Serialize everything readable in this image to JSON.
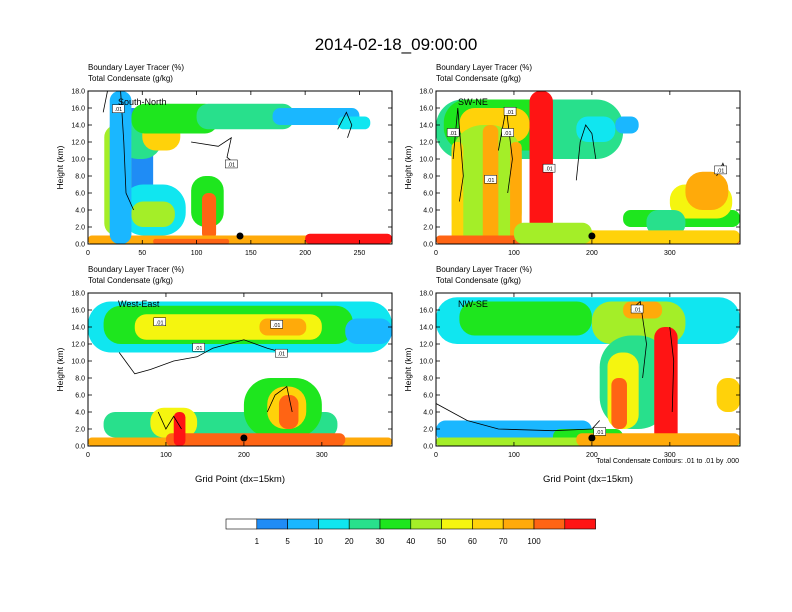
{
  "title": "2014-02-18_09:00:00",
  "palette": [
    "#ffffff",
    "#1f8cf5",
    "#1ab7ff",
    "#10e6f0",
    "#28e08c",
    "#1ee61e",
    "#a4ee28",
    "#f5f50f",
    "#ffd20a",
    "#ffaa0a",
    "#ff6414",
    "#ff1414"
  ],
  "colorbar": {
    "labels": [
      "1",
      "5",
      "10",
      "20",
      "30",
      "40",
      "50",
      "60",
      "70",
      "100"
    ]
  },
  "footnote": "Total Condensate Contours: .01 to .01 by .000",
  "colors": {
    "contour": "#000000",
    "frame": "#000000",
    "marker": "#000000"
  },
  "chart_data": [
    {
      "type": "heatmap",
      "panel": "top-left",
      "left_title_1": "Boundary Layer Tracer   (%)",
      "left_title_2": "Total Condensate   (g/kg)",
      "label": "South-North",
      "ylabel": "Height (km)",
      "xlabel": "",
      "xlim": [
        0,
        280
      ],
      "ylim": [
        0,
        18
      ],
      "xticks": [
        0,
        50,
        100,
        150,
        200,
        250
      ],
      "yticks": [
        0.0,
        2.0,
        4.0,
        6.0,
        8.0,
        10.0,
        12.0,
        14.0,
        16.0,
        18.0
      ],
      "marker_x": 140,
      "contour_labels": [
        {
          "text": ".01",
          "x": 28,
          "y": 15.8
        },
        {
          "text": ".01",
          "x": 132,
          "y": 9.3
        }
      ],
      "blobs": [
        [
          20,
          60,
          2,
          16,
          1
        ],
        [
          28,
          68,
          10,
          15,
          4
        ],
        [
          50,
          85,
          11,
          14.5,
          8
        ],
        [
          40,
          120,
          13,
          16.5,
          5
        ],
        [
          100,
          190,
          13.5,
          16.5,
          4
        ],
        [
          170,
          250,
          14,
          16,
          2
        ],
        [
          230,
          260,
          13.5,
          15,
          3
        ],
        [
          15,
          40,
          1,
          14,
          6
        ],
        [
          22,
          34,
          2,
          12,
          9
        ],
        [
          30,
          90,
          1,
          7,
          3
        ],
        [
          40,
          80,
          2,
          5,
          6
        ],
        [
          95,
          125,
          2,
          8,
          5
        ],
        [
          105,
          118,
          0.5,
          6,
          10
        ],
        [
          0,
          280,
          0,
          1,
          9
        ],
        [
          60,
          130,
          0,
          0.6,
          10
        ],
        [
          200,
          280,
          0,
          1.2,
          11
        ],
        [
          20,
          40,
          0,
          18,
          2
        ]
      ],
      "contours": [
        [
          [
            14,
            15.5
          ],
          [
            18,
            18
          ],
          [
            30,
            18
          ],
          [
            33,
            12
          ],
          [
            35,
            6
          ],
          [
            42,
            4
          ]
        ],
        [
          [
            95,
            12
          ],
          [
            120,
            11.5
          ],
          [
            132,
            12.5
          ],
          [
            128,
            10.2
          ],
          [
            135,
            9.5
          ]
        ],
        [
          [
            230,
            13.5
          ],
          [
            238,
            15.5
          ],
          [
            243,
            14
          ],
          [
            239,
            12.5
          ]
        ]
      ]
    },
    {
      "type": "heatmap",
      "panel": "top-right",
      "left_title_1": "Boundary Layer Tracer   (%)",
      "left_title_2": "Total Condensate   (g/kg)",
      "label": "SW-NE",
      "ylabel": "Height (km)",
      "xlabel": "",
      "xlim": [
        0,
        390
      ],
      "ylim": [
        0,
        18
      ],
      "xticks": [
        0,
        100,
        200,
        300
      ],
      "yticks": [
        0.0,
        2.0,
        4.0,
        6.0,
        8.0,
        10.0,
        12.0,
        14.0,
        16.0,
        18.0
      ],
      "marker_x": 200,
      "contour_labels": [
        {
          "text": ".01",
          "x": 22,
          "y": 13
        },
        {
          "text": ".01",
          "x": 95,
          "y": 15.5
        },
        {
          "text": ".01",
          "x": 92,
          "y": 13
        },
        {
          "text": ".01",
          "x": 70,
          "y": 7.5
        },
        {
          "text": ".01",
          "x": 145,
          "y": 8.8
        },
        {
          "text": ".01",
          "x": 365,
          "y": 8.6
        }
      ],
      "blobs": [
        [
          0,
          240,
          10,
          17,
          4
        ],
        [
          10,
          150,
          11,
          17,
          5
        ],
        [
          30,
          120,
          12,
          16,
          8
        ],
        [
          180,
          230,
          12,
          15,
          3
        ],
        [
          230,
          260,
          13,
          15,
          2
        ],
        [
          120,
          150,
          0,
          18,
          11
        ],
        [
          130,
          142,
          0,
          17,
          11
        ],
        [
          20,
          110,
          0,
          14,
          6
        ],
        [
          60,
          80,
          0,
          14,
          9
        ],
        [
          20,
          35,
          0,
          12,
          8
        ],
        [
          95,
          110,
          0,
          12,
          9
        ],
        [
          240,
          390,
          2,
          4,
          5
        ],
        [
          300,
          380,
          3,
          7,
          7
        ],
        [
          320,
          375,
          4,
          8.5,
          9
        ],
        [
          270,
          320,
          1,
          4,
          4
        ],
        [
          0,
          390,
          0,
          1,
          10
        ],
        [
          170,
          390,
          0,
          1.6,
          8
        ],
        [
          100,
          200,
          0,
          2.5,
          6
        ]
      ],
      "contours": [
        [
          [
            22,
            10
          ],
          [
            28,
            16
          ],
          [
            35,
            8
          ],
          [
            30,
            5
          ]
        ],
        [
          [
            80,
            11
          ],
          [
            90,
            16
          ],
          [
            98,
            10
          ],
          [
            92,
            6
          ]
        ],
        [
          [
            180,
            7.5
          ],
          [
            185,
            12
          ],
          [
            192,
            14
          ],
          [
            200,
            13
          ],
          [
            205,
            10
          ]
        ],
        [
          [
            360,
            8
          ],
          [
            368,
            9.5
          ],
          [
            372,
            8.5
          ]
        ]
      ]
    },
    {
      "type": "heatmap",
      "panel": "bottom-left",
      "left_title_1": "Boundary Layer Tracer   (%)",
      "left_title_2": "Total Condensate   (g/kg)",
      "label": "West-East",
      "ylabel": "Height (km)",
      "xlabel": "Grid Point (dx=15km)",
      "xlim": [
        0,
        390
      ],
      "ylim": [
        0,
        18
      ],
      "xticks": [
        0,
        100,
        200,
        300
      ],
      "yticks": [
        0.0,
        2.0,
        4.0,
        6.0,
        8.0,
        10.0,
        12.0,
        14.0,
        16.0,
        18.0
      ],
      "marker_x": 200,
      "contour_labels": [
        {
          "text": ".01",
          "x": 92,
          "y": 14.5
        },
        {
          "text": ".01",
          "x": 142,
          "y": 11.5
        },
        {
          "text": ".01",
          "x": 242,
          "y": 14.2
        },
        {
          "text": ".01",
          "x": 248,
          "y": 10.8
        }
      ],
      "blobs": [
        [
          0,
          390,
          11,
          17,
          3
        ],
        [
          20,
          340,
          12,
          16.5,
          5
        ],
        [
          60,
          300,
          12.5,
          15.5,
          7
        ],
        [
          220,
          280,
          13,
          15,
          9
        ],
        [
          330,
          390,
          12,
          15,
          2
        ],
        [
          20,
          320,
          1,
          4,
          4
        ],
        [
          80,
          140,
          1,
          4.5,
          7
        ],
        [
          200,
          300,
          1,
          8,
          5
        ],
        [
          230,
          280,
          2,
          7,
          8
        ],
        [
          245,
          270,
          2,
          6,
          10
        ],
        [
          0,
          390,
          0,
          1,
          9
        ],
        [
          100,
          330,
          0,
          1.5,
          10
        ],
        [
          110,
          125,
          0,
          4,
          11
        ]
      ],
      "contours": [
        [
          [
            40,
            11
          ],
          [
            60,
            8.5
          ],
          [
            80,
            9
          ],
          [
            110,
            10
          ],
          [
            140,
            10.5
          ],
          [
            160,
            11.5
          ],
          [
            200,
            12.5
          ],
          [
            230,
            11.5
          ],
          [
            250,
            11
          ]
        ],
        [
          [
            90,
            4
          ],
          [
            100,
            2
          ],
          [
            110,
            3.5
          ],
          [
            120,
            2
          ]
        ],
        [
          [
            230,
            4
          ],
          [
            240,
            6
          ],
          [
            255,
            7
          ],
          [
            262,
            4
          ]
        ]
      ]
    },
    {
      "type": "heatmap",
      "panel": "bottom-right",
      "left_title_1": "Boundary Layer Tracer   (%)",
      "left_title_2": "Total Condensate   (g/kg)",
      "label": "NW-SE",
      "ylabel": "Height (km)",
      "xlabel": "Grid Point (dx=15km)",
      "xlim": [
        0,
        390
      ],
      "ylim": [
        0,
        18
      ],
      "xticks": [
        0,
        100,
        200,
        300
      ],
      "yticks": [
        0.0,
        2.0,
        4.0,
        6.0,
        8.0,
        10.0,
        12.0,
        14.0,
        16.0,
        18.0
      ],
      "marker_x": 200,
      "contour_labels": [
        {
          "text": ".01",
          "x": 258,
          "y": 16
        },
        {
          "text": ".01",
          "x": 210,
          "y": 1.6
        }
      ],
      "blobs": [
        [
          0,
          390,
          12,
          17.5,
          3
        ],
        [
          30,
          200,
          13,
          17,
          5
        ],
        [
          200,
          320,
          12,
          17,
          6
        ],
        [
          240,
          290,
          15,
          17,
          9
        ],
        [
          210,
          300,
          2,
          13,
          4
        ],
        [
          220,
          260,
          2,
          11,
          7
        ],
        [
          225,
          245,
          2,
          8,
          10
        ],
        [
          280,
          310,
          0,
          14,
          11
        ],
        [
          290,
          305,
          0,
          13,
          11
        ],
        [
          0,
          200,
          0.5,
          3,
          2
        ],
        [
          150,
          240,
          0,
          2,
          5
        ],
        [
          360,
          390,
          4,
          8,
          8
        ],
        [
          0,
          390,
          0,
          1,
          6
        ],
        [
          180,
          390,
          0,
          1.5,
          9
        ]
      ],
      "contours": [
        [
          [
            0,
            5
          ],
          [
            40,
            3
          ],
          [
            80,
            2
          ],
          [
            150,
            1.8
          ],
          [
            200,
            2
          ],
          [
            210,
            3
          ]
        ],
        [
          [
            250,
            16
          ],
          [
            262,
            17
          ],
          [
            270,
            12
          ],
          [
            265,
            8
          ]
        ],
        [
          [
            300,
            14
          ],
          [
            305,
            10
          ],
          [
            303,
            4
          ]
        ]
      ]
    }
  ]
}
